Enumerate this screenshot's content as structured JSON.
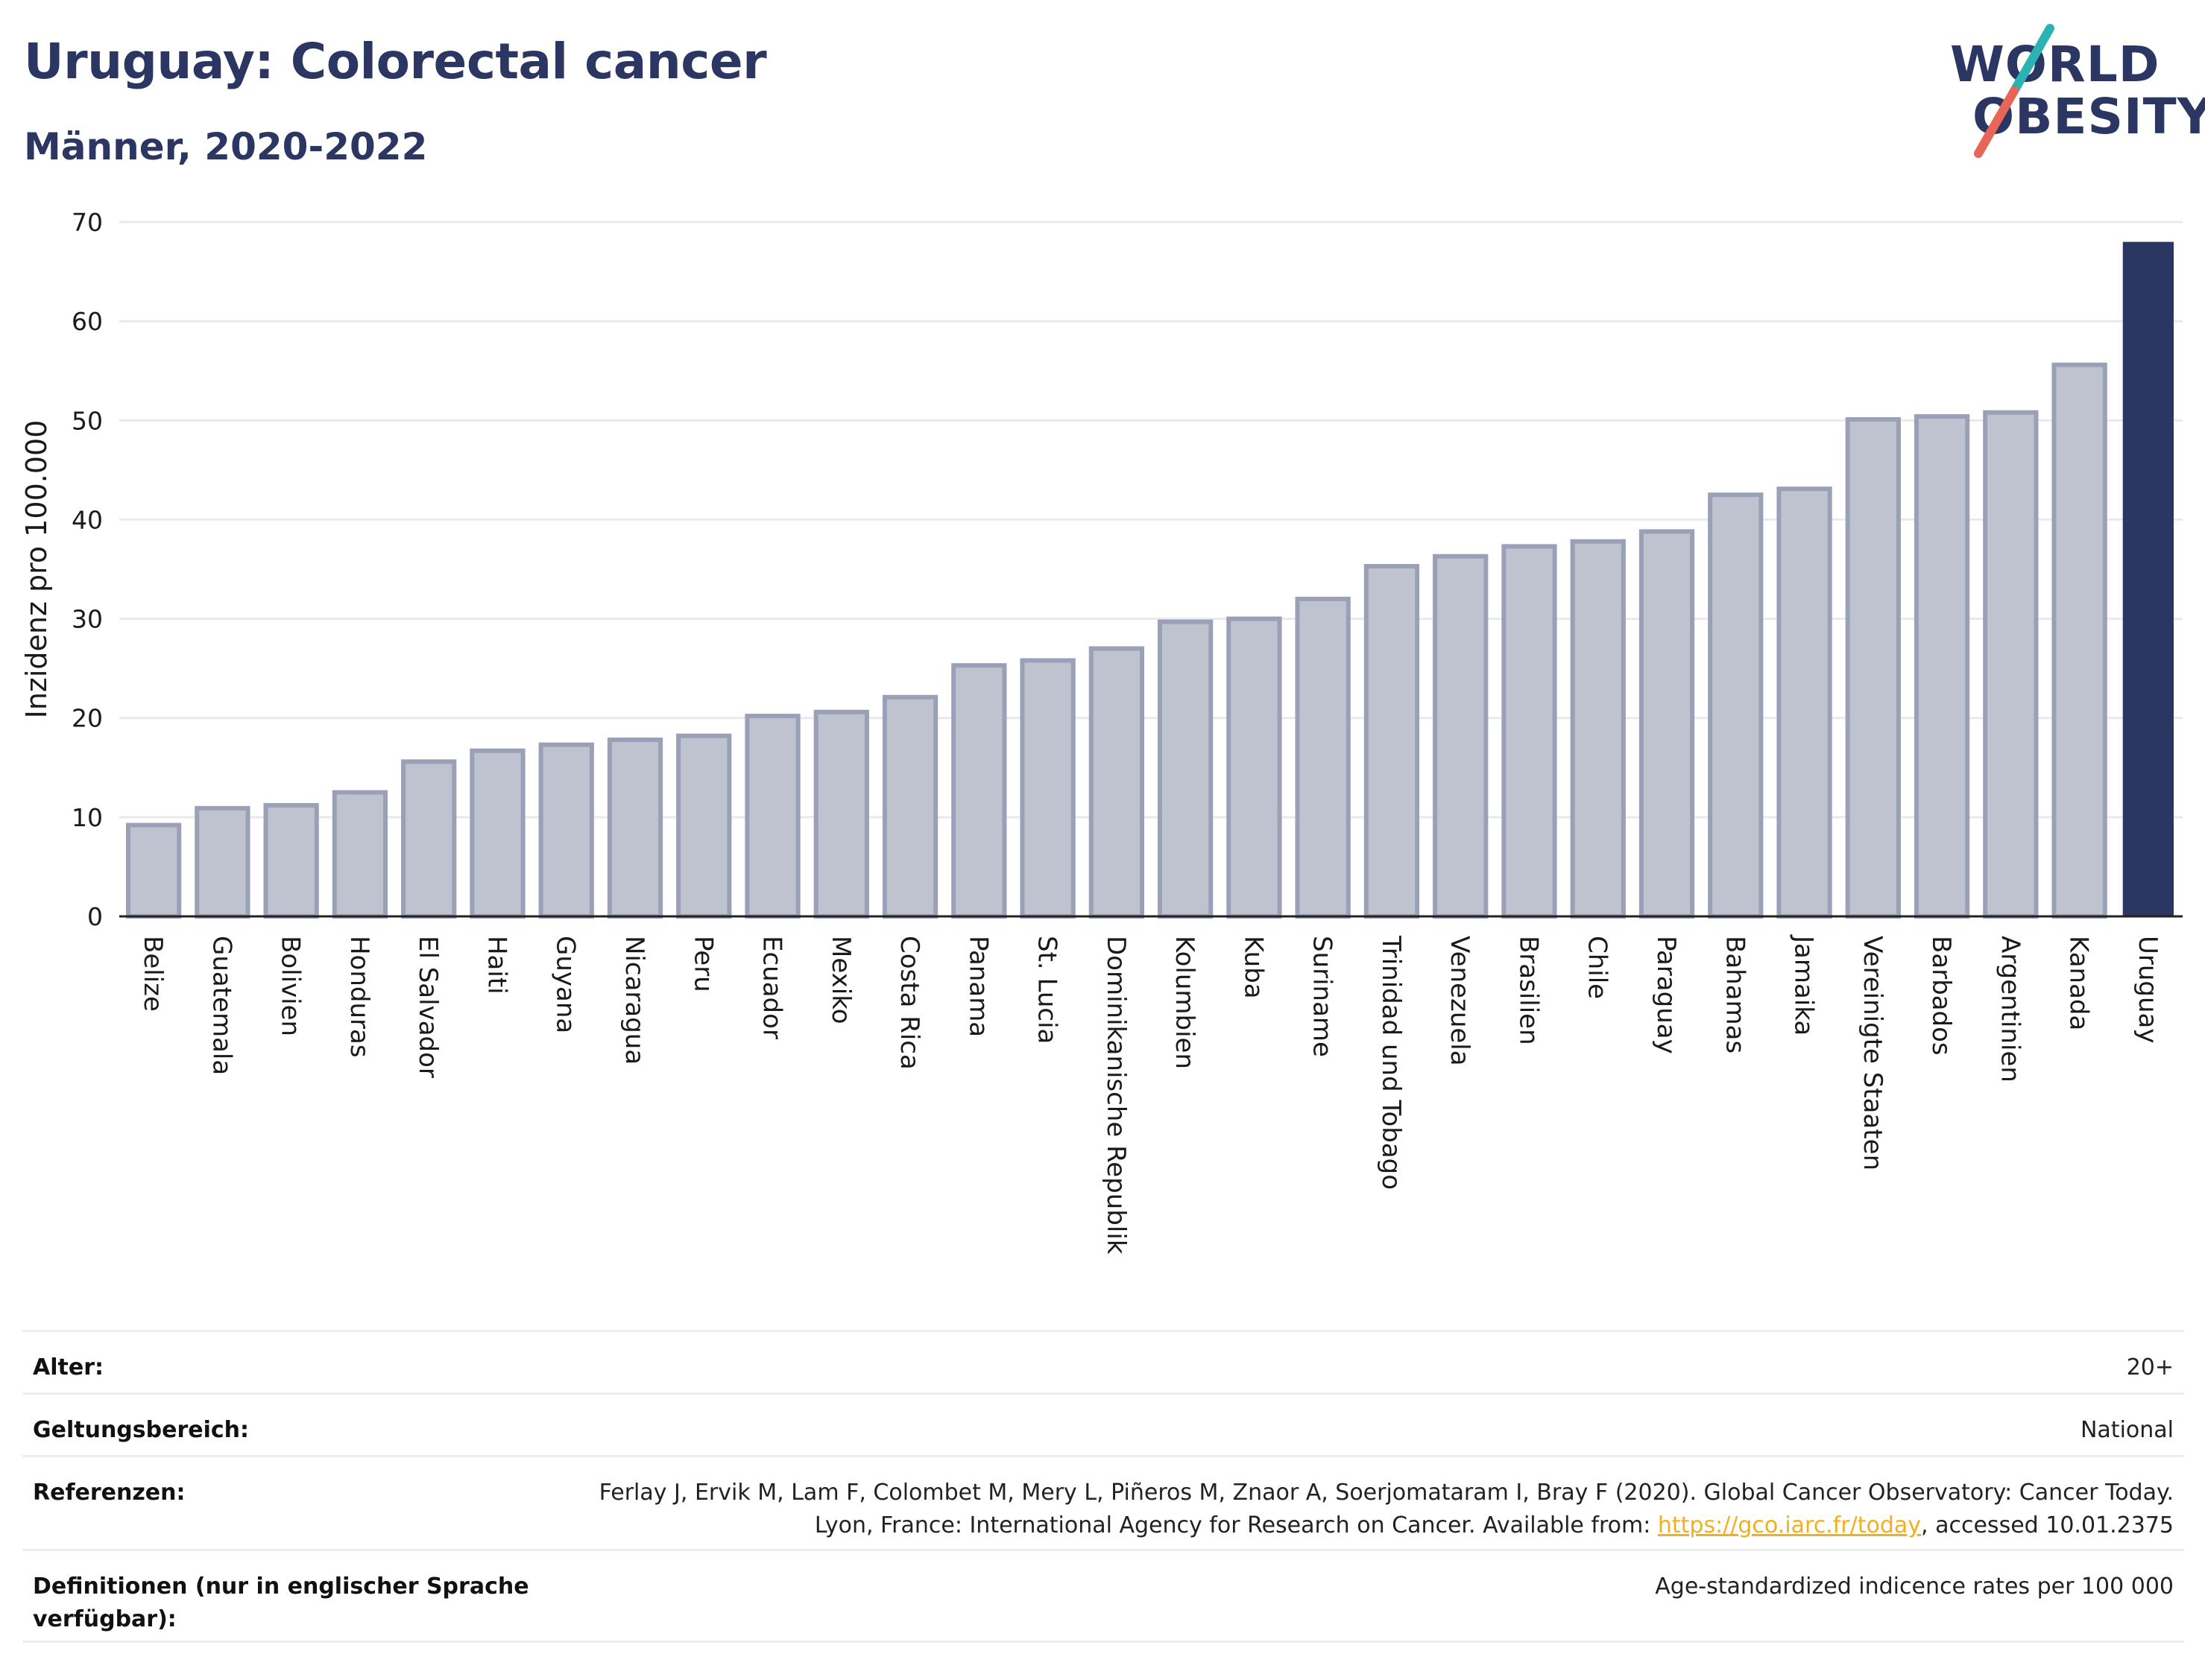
{
  "header": {
    "title": "Uruguay: Colorectal cancer",
    "subtitle": "Männer, 2020-2022"
  },
  "logo": {
    "line1": "WORLD",
    "line2": "OBESITY",
    "slash_colors": [
      "#2ab3b0",
      "#e8655a"
    ]
  },
  "colors": {
    "bar_default": "#bfc3d0",
    "bar_border": "#9aa0b6",
    "bar_highlight": "#2c3663",
    "gridline": "#e8eaef",
    "text_dark": "#2c3663",
    "link": "#f2b01e"
  },
  "chart_data": {
    "type": "bar",
    "ylabel": "Inzidenz pro 100.000",
    "ylim": [
      0,
      70
    ],
    "yticks": [
      0,
      10,
      20,
      30,
      40,
      50,
      60,
      70
    ],
    "grid": true,
    "highlight": "Uruguay",
    "categories": [
      "Belize",
      "Guatemala",
      "Bolivien",
      "Honduras",
      "El Salvador",
      "Haiti",
      "Guyana",
      "Nicaragua",
      "Peru",
      "Ecuador",
      "Mexiko",
      "Costa Rica",
      "Panama",
      "St. Lucia",
      "Dominikanische Republik",
      "Kolumbien",
      "Kuba",
      "Suriname",
      "Trinidad und Tobago",
      "Venezuela",
      "Brasilien",
      "Chile",
      "Paraguay",
      "Bahamas",
      "Jamaika",
      "Vereinigte Staaten",
      "Barbados",
      "Argentinien",
      "Kanada",
      "Uruguay"
    ],
    "values": [
      9.2,
      10.9,
      11.2,
      12.5,
      15.6,
      16.7,
      17.3,
      17.8,
      18.2,
      20.2,
      20.6,
      22.1,
      25.3,
      25.8,
      27.0,
      29.7,
      30.0,
      32.0,
      35.3,
      36.3,
      37.3,
      37.8,
      38.8,
      42.5,
      43.1,
      50.1,
      50.4,
      50.8,
      55.6,
      68.0
    ]
  },
  "info": {
    "rows": [
      {
        "label": "Alter:",
        "value": "20+"
      },
      {
        "label": "Geltungsbereich:",
        "value": "National"
      },
      {
        "label": "Referenzen:",
        "value_pre": "Ferlay J, Ervik M, Lam F, Colombet M, Mery L, Piñeros M, Znaor A, Soerjomataram I, Bray F (2020). Global Cancer Observatory: Cancer Today. Lyon, France: International Agency for Research on Cancer. Available from: ",
        "link": "https://gco.iarc.fr/today",
        "value_post": ", accessed 10.01.2375"
      },
      {
        "label": "Definitionen (nur in englischer Sprache verfügbar):",
        "value": "Age-standardized indicence rates per 100 000"
      }
    ]
  }
}
